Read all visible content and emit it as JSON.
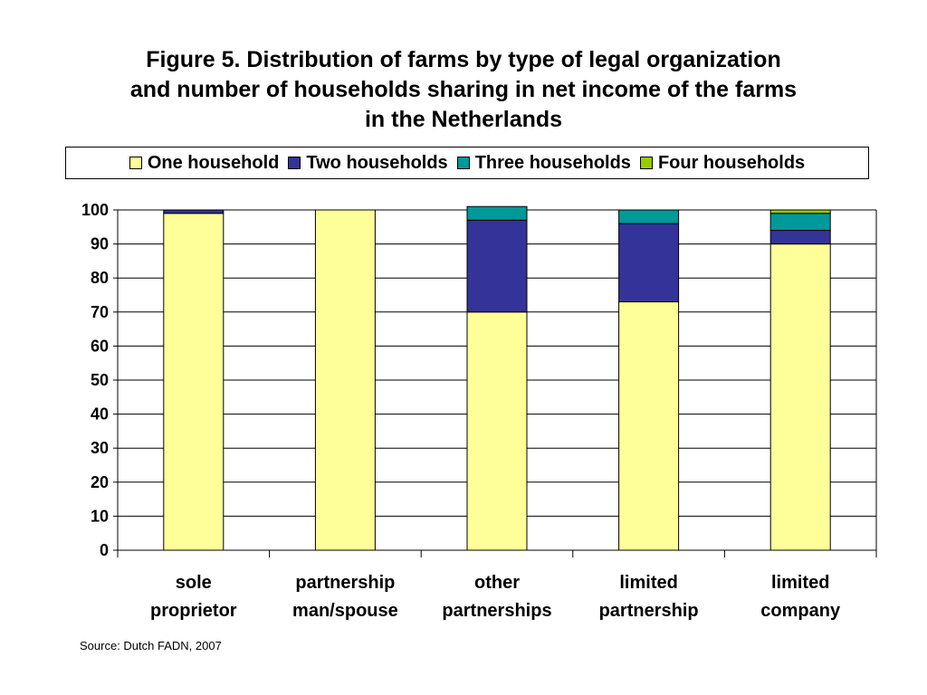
{
  "chart_data": {
    "type": "bar",
    "stacked": true,
    "title_lines": [
      "Figure 5. Distribution of farms by type of legal organization",
      "and number of households sharing in net income of the farms",
      "in the Netherlands"
    ],
    "categories": [
      [
        "sole",
        "proprietor"
      ],
      [
        "partnership",
        "man/spouse"
      ],
      [
        "other",
        "partnerships"
      ],
      [
        "limited",
        "partnership"
      ],
      [
        "limited",
        "company"
      ]
    ],
    "series": [
      {
        "name": "One household",
        "color": "#FFFF99",
        "values": [
          99,
          100,
          70,
          73,
          90
        ]
      },
      {
        "name": "Two households",
        "color": "#333399",
        "values": [
          1,
          0,
          27,
          23,
          4
        ]
      },
      {
        "name": "Three households",
        "color": "#009999",
        "values": [
          0,
          0,
          4,
          4,
          5
        ]
      },
      {
        "name": "Four households",
        "color": "#99CC00",
        "values": [
          0,
          0,
          0,
          0,
          1
        ]
      }
    ],
    "ylim": [
      0,
      100
    ],
    "yticks": [
      0,
      10,
      20,
      30,
      40,
      50,
      60,
      70,
      80,
      90,
      100
    ],
    "grid": true,
    "legend_position": "top"
  },
  "source": "Source: Dutch FADN, 2007"
}
